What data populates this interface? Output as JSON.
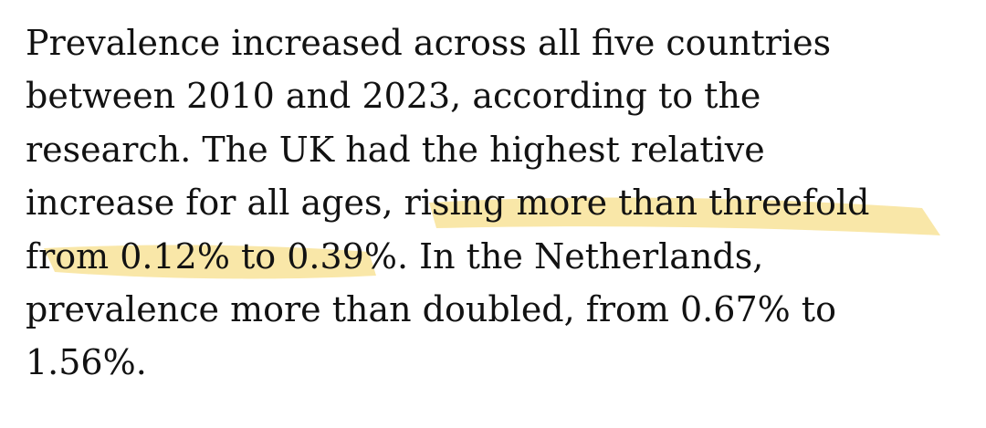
{
  "article": {
    "lines": [
      "Prevalence increased across all five countries",
      "between 2010 and 2023, according to the",
      "research. The UK had the highest relative",
      "increase for all ages, rising more than threefold",
      "from 0.12% to 0.39%. In the Netherlands,",
      "prevalence more than doubled, from 0.67% to",
      "1.56%."
    ]
  },
  "highlight": {
    "color": "#f5d76e",
    "text": "rising more than threefold from 0.12% to 0.39%"
  }
}
